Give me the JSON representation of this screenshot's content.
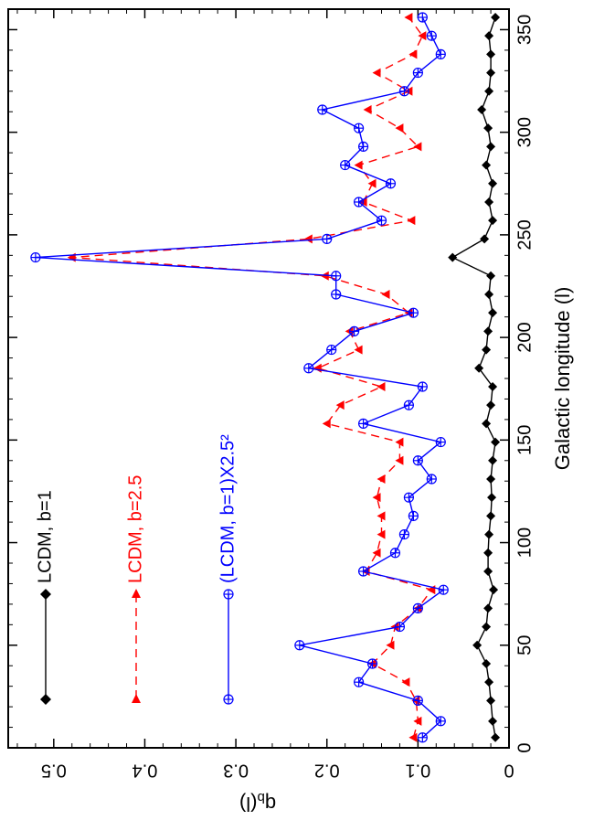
{
  "chart_data": {
    "type": "line",
    "xlabel": "Galactic longitude (l)",
    "ylabel": "q_b(l)",
    "ylabel_main": "q",
    "ylabel_sub": "b",
    "ylabel_arg": "(l)",
    "xlim": [
      0,
      360
    ],
    "ylim": [
      0,
      0.55
    ],
    "x_ticks": [
      0,
      50,
      100,
      150,
      200,
      250,
      300,
      350
    ],
    "y_ticks": [
      0,
      0.1,
      0.2,
      0.3,
      0.4,
      0.5
    ],
    "y_tick_labels": [
      "0",
      "0.1",
      "0.2",
      "0.3",
      "0.4",
      "0.5"
    ],
    "grid": false,
    "orientation": "figure rotated 90 degrees clockwise",
    "legend_position": "top-left",
    "series": [
      {
        "name": "LCDM, b=1",
        "color": "#000000",
        "line": "solid",
        "marker": "filled-diamond",
        "x": [
          5,
          13,
          23,
          32,
          41,
          50,
          59,
          68,
          77,
          86,
          95,
          104,
          113,
          122,
          131,
          140,
          149,
          158,
          167,
          176,
          185,
          194,
          203,
          212,
          221,
          230,
          239,
          248,
          257,
          266,
          275,
          284,
          293,
          302,
          311,
          320,
          329,
          338,
          347,
          356
        ],
        "y": [
          0.015,
          0.018,
          0.02,
          0.022,
          0.025,
          0.035,
          0.025,
          0.023,
          0.017,
          0.023,
          0.023,
          0.022,
          0.02,
          0.019,
          0.02,
          0.018,
          0.015,
          0.025,
          0.02,
          0.018,
          0.033,
          0.025,
          0.023,
          0.018,
          0.022,
          0.02,
          0.062,
          0.027,
          0.018,
          0.022,
          0.018,
          0.025,
          0.02,
          0.023,
          0.03,
          0.022,
          0.02,
          0.02,
          0.022,
          0.015
        ]
      },
      {
        "name": "LCDM, b=2.5",
        "color": "#ff0000",
        "line": "dashed",
        "marker": "filled-triangle",
        "x": [
          5,
          13,
          23,
          32,
          41,
          50,
          59,
          68,
          77,
          86,
          95,
          104,
          113,
          122,
          131,
          140,
          149,
          158,
          167,
          176,
          185,
          194,
          203,
          212,
          221,
          230,
          239,
          248,
          257,
          266,
          275,
          284,
          293,
          302,
          311,
          320,
          329,
          338,
          347,
          356
        ],
        "y": [
          0.105,
          0.1,
          0.102,
          0.113,
          0.15,
          0.13,
          0.125,
          0.1,
          0.085,
          0.157,
          0.145,
          0.14,
          0.14,
          0.145,
          0.14,
          0.12,
          0.12,
          0.2,
          0.185,
          0.14,
          0.21,
          0.165,
          0.175,
          0.11,
          0.135,
          0.202,
          0.48,
          0.22,
          0.107,
          0.16,
          0.15,
          0.165,
          0.1,
          0.12,
          0.155,
          0.11,
          0.145,
          0.105,
          0.095,
          0.11
        ]
      },
      {
        "name": "(LCDM, b=1)X2.5²",
        "color": "#0000ff",
        "line": "solid",
        "marker": "circle-plus",
        "x": [
          5,
          13,
          23,
          32,
          41,
          50,
          59,
          68,
          77,
          86,
          95,
          104,
          113,
          122,
          131,
          140,
          149,
          158,
          167,
          176,
          185,
          194,
          203,
          212,
          221,
          230,
          239,
          248,
          257,
          266,
          275,
          284,
          293,
          302,
          311,
          320,
          329,
          338,
          347,
          356
        ],
        "y": [
          0.095,
          0.075,
          0.1,
          0.165,
          0.15,
          0.23,
          0.12,
          0.1,
          0.072,
          0.16,
          0.125,
          0.115,
          0.105,
          0.11,
          0.085,
          0.1,
          0.075,
          0.16,
          0.11,
          0.095,
          0.22,
          0.195,
          0.17,
          0.105,
          0.19,
          0.19,
          0.52,
          0.2,
          0.14,
          0.165,
          0.13,
          0.18,
          0.16,
          0.165,
          0.205,
          0.115,
          0.1,
          0.075,
          0.085,
          0.095
        ]
      }
    ]
  },
  "legend": [
    {
      "label": "LCDM,  b=1"
    },
    {
      "label": "LCDM,  b=2.5"
    },
    {
      "label": "(LCDM,  b=1)X2.5²"
    }
  ]
}
